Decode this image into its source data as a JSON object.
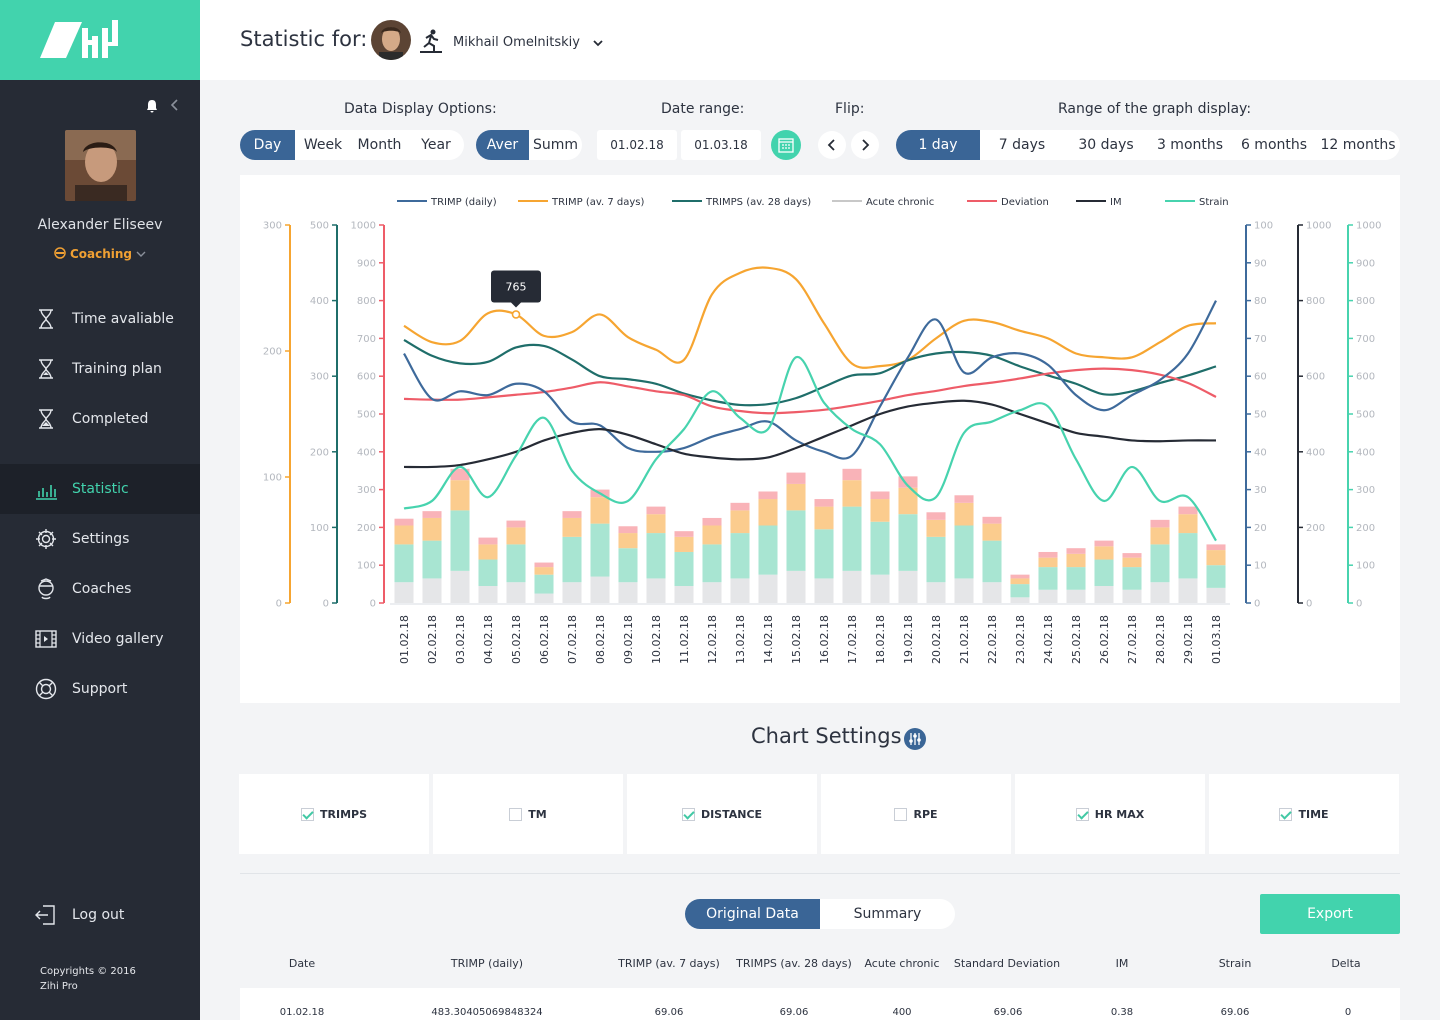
{
  "sidebar": {
    "user_name": "Alexander Eliseev",
    "role": "Coaching",
    "nav": [
      {
        "label": "Time avaliable",
        "icon": "hourglass-icon"
      },
      {
        "label": "Training plan",
        "icon": "hourglass-icon"
      },
      {
        "label": "Completed",
        "icon": "hourglass-icon"
      },
      {
        "label": "Statistic",
        "icon": "bar-chart-icon",
        "active": true
      },
      {
        "label": "Settings",
        "icon": "gear-icon"
      },
      {
        "label": "Coaches",
        "icon": "coach-icon"
      },
      {
        "label": "Video gallery",
        "icon": "film-icon"
      },
      {
        "label": "Support",
        "icon": "lifebuoy-icon"
      }
    ],
    "logout": "Log out",
    "copyright_line1": "Copyrights © 2016",
    "copyright_line2": "Zihi Pro"
  },
  "header": {
    "title": "Statistic for:",
    "athlete_name": "Mikhail Omelnitskiy"
  },
  "controls": {
    "display_label": "Data Display Options:",
    "periods": [
      "Day",
      "Week",
      "Month",
      "Year"
    ],
    "period_selected": "Day",
    "agg": [
      "Aver",
      "Summ"
    ],
    "agg_selected": "Aver",
    "date_label": "Date range:",
    "date_from": "01.02.18",
    "date_to": "01.03.18",
    "flip_label": "Flip:",
    "range_label": "Range of the graph display:",
    "ranges": [
      "1 day",
      "7 days",
      "30 days",
      "3 months",
      "6 months",
      "12 months"
    ],
    "range_selected": "1 day"
  },
  "chart_data": {
    "type": "line",
    "x": [
      "01.02.18",
      "02.02.18",
      "03.02.18",
      "04.02.18",
      "05.02.18",
      "06.02.18",
      "07.02.18",
      "08.02.18",
      "09.02.18",
      "10.02.18",
      "11.02.18",
      "12.02.18",
      "13.02.18",
      "14.02.18",
      "15.02.18",
      "16.02.18",
      "17.02.18",
      "18.02.18",
      "19.02.18",
      "20.02.18",
      "21.02.18",
      "22.02.18",
      "23.02.18",
      "24.02.18",
      "25.02.18",
      "26.02.18",
      "27.02.18",
      "28.02.18",
      "29.02.18",
      "01.03.18"
    ],
    "legend": [
      "TRIMP (daily)",
      "TRIMP (av. 7 days)",
      "TRIMPS (av. 28 days)",
      "Acute chronic",
      "Deviation",
      "IM",
      "Strain"
    ],
    "colors": {
      "TRIMP (daily)": "#3e6a9b",
      "TRIMP (av. 7 days)": "#f6a531",
      "TRIMPS (av. 28 days)": "#1f6e6a",
      "Acute chronic": "#c8c8c8",
      "Deviation": "#ee5c68",
      "IM": "#262b35",
      "Strain": "#47d3ae"
    },
    "axes_left": [
      {
        "color": "#f6a531",
        "max": 300,
        "ticks": [
          0,
          100,
          200,
          300
        ]
      },
      {
        "color": "#1f6e6a",
        "max": 500,
        "ticks": [
          0,
          100,
          200,
          300,
          400,
          500
        ]
      },
      {
        "color": "#ee5c68",
        "max": 1000,
        "ticks": [
          0,
          100,
          200,
          300,
          400,
          500,
          600,
          700,
          800,
          900,
          1000
        ]
      }
    ],
    "axes_right": [
      {
        "color": "#3e6a9b",
        "max": 100,
        "ticks": [
          0,
          10,
          20,
          30,
          40,
          50,
          60,
          70,
          80,
          90,
          100
        ]
      },
      {
        "color": "#262b35",
        "max": 1000,
        "ticks": [
          0,
          200,
          400,
          600,
          800,
          1000
        ]
      },
      {
        "color": "#47d3ae",
        "max": 1000,
        "ticks": [
          0,
          100,
          200,
          300,
          400,
          500,
          600,
          700,
          800,
          900,
          1000
        ]
      }
    ],
    "series": [
      {
        "name": "TRIMP (av. 7 days)",
        "axis": "left0",
        "values": [
          220,
          207,
          208,
          230,
          229,
          212,
          215,
          229,
          211,
          201,
          193,
          245,
          262,
          266,
          257,
          222,
          190,
          188,
          193,
          210,
          224,
          223,
          216,
          210,
          198,
          195,
          195,
          207,
          220,
          222
        ]
      },
      {
        "name": "TRIMPS (av. 28 days)",
        "axis": "left1",
        "values": [
          348,
          327,
          317,
          319,
          338,
          340,
          322,
          300,
          296,
          290,
          277,
          268,
          262,
          263,
          271,
          286,
          301,
          304,
          321,
          330,
          332,
          327,
          313,
          301,
          290,
          276,
          280,
          291,
          301,
          313
        ]
      },
      {
        "name": "Deviation",
        "axis": "left2",
        "values": [
          540,
          538,
          538,
          544,
          551,
          558,
          570,
          584,
          573,
          560,
          550,
          520,
          508,
          502,
          505,
          511,
          522,
          535,
          550,
          561,
          574,
          583,
          594,
          607,
          616,
          620,
          616,
          604,
          582,
          545
        ]
      },
      {
        "name": "TRIMP (daily)",
        "axis": "right0",
        "values": [
          66,
          54,
          56,
          55,
          58,
          56,
          48,
          47,
          41,
          40,
          41,
          44,
          46,
          48,
          43,
          40,
          39,
          52,
          65,
          75,
          61,
          65,
          66,
          63,
          55,
          51,
          55,
          59,
          66,
          80
        ]
      },
      {
        "name": "IM",
        "axis": "right1",
        "values": [
          360,
          360,
          365,
          380,
          400,
          430,
          450,
          460,
          445,
          420,
          395,
          385,
          380,
          385,
          410,
          440,
          470,
          500,
          520,
          530,
          535,
          525,
          500,
          475,
          450,
          440,
          430,
          428,
          430,
          430
        ]
      },
      {
        "name": "Strain",
        "axis": "right2",
        "values": [
          250,
          270,
          360,
          280,
          390,
          490,
          350,
          290,
          270,
          380,
          460,
          560,
          490,
          460,
          650,
          530,
          460,
          420,
          310,
          280,
          450,
          480,
          510,
          520,
          380,
          270,
          360,
          270,
          280,
          165
        ]
      }
    ],
    "bars": {
      "axis": "left2",
      "stack_colors": [
        "#e5e6e8",
        "#a8e5d2",
        "#fbcc8e",
        "#f9b3b8"
      ],
      "stacks": [
        [
          55,
          100,
          50,
          18
        ],
        [
          65,
          100,
          60,
          18
        ],
        [
          85,
          160,
          80,
          30
        ],
        [
          45,
          70,
          40,
          18
        ],
        [
          55,
          100,
          45,
          18
        ],
        [
          25,
          50,
          20,
          12
        ],
        [
          55,
          120,
          50,
          18
        ],
        [
          70,
          140,
          70,
          20
        ],
        [
          55,
          90,
          40,
          18
        ],
        [
          65,
          120,
          50,
          20
        ],
        [
          45,
          90,
          40,
          15
        ],
        [
          55,
          100,
          50,
          20
        ],
        [
          65,
          120,
          60,
          20
        ],
        [
          75,
          130,
          70,
          20
        ],
        [
          85,
          160,
          70,
          30
        ],
        [
          65,
          130,
          60,
          20
        ],
        [
          85,
          170,
          70,
          30
        ],
        [
          75,
          140,
          60,
          20
        ],
        [
          85,
          150,
          70,
          30
        ],
        [
          55,
          120,
          45,
          20
        ],
        [
          65,
          140,
          60,
          20
        ],
        [
          55,
          110,
          45,
          18
        ],
        [
          15,
          35,
          15,
          10
        ],
        [
          35,
          60,
          25,
          15
        ],
        [
          35,
          60,
          35,
          15
        ],
        [
          45,
          70,
          35,
          15
        ],
        [
          35,
          60,
          25,
          12
        ],
        [
          55,
          100,
          45,
          20
        ],
        [
          65,
          120,
          50,
          20
        ],
        [
          40,
          60,
          40,
          15
        ]
      ]
    },
    "tooltip": {
      "value": "765",
      "index": 4
    }
  },
  "settings": {
    "title": "Chart Settings",
    "items": [
      {
        "label": "TRIMPS",
        "checked": true
      },
      {
        "label": "TM",
        "checked": false
      },
      {
        "label": "DISTANCE",
        "checked": true
      },
      {
        "label": "RPE",
        "checked": false
      },
      {
        "label": "HR MAX",
        "checked": true
      },
      {
        "label": "TIME",
        "checked": true
      }
    ]
  },
  "data_tabs": [
    "Original Data",
    "Summary"
  ],
  "data_tab_selected": "Original Data",
  "export_label": "Export",
  "table": {
    "headers": [
      "Date",
      "TRIMP (daily)",
      "TRIMP (av. 7 days)",
      "TRIMPS (av. 28 days)",
      "Acute chronic",
      "Standard Deviation",
      "IM",
      "Strain",
      "Delta"
    ],
    "rows": [
      [
        "01.02.18",
        "483.30405069848324",
        "69.06",
        "69.06",
        "400",
        "69.06",
        "0.38",
        "69.06",
        "0"
      ]
    ]
  }
}
